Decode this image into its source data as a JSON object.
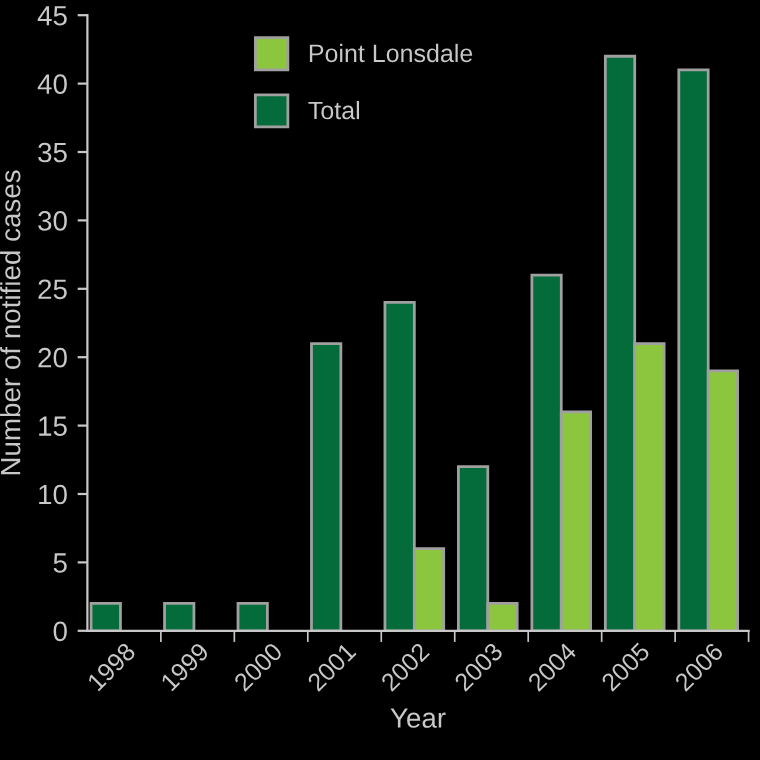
{
  "chart_data": {
    "type": "bar",
    "xlabel": "Year",
    "ylabel": "Number of notified cases",
    "categories": [
      "1998",
      "1999",
      "2000",
      "2001",
      "2002",
      "2003",
      "2004",
      "2005",
      "2006"
    ],
    "series": [
      {
        "name": "Total",
        "color": "#046b3a",
        "values": [
          2,
          2,
          2,
          21,
          24,
          12,
          26,
          42,
          41
        ]
      },
      {
        "name": "Point Lonsdale",
        "color": "#8cc63f",
        "values": [
          null,
          null,
          null,
          null,
          6,
          2,
          16,
          21,
          19
        ]
      }
    ],
    "ylim": [
      0,
      45
    ],
    "yticks": [
      0,
      5,
      10,
      15,
      20,
      25,
      30,
      35,
      40,
      45
    ],
    "grid": false,
    "legend": "top left"
  }
}
